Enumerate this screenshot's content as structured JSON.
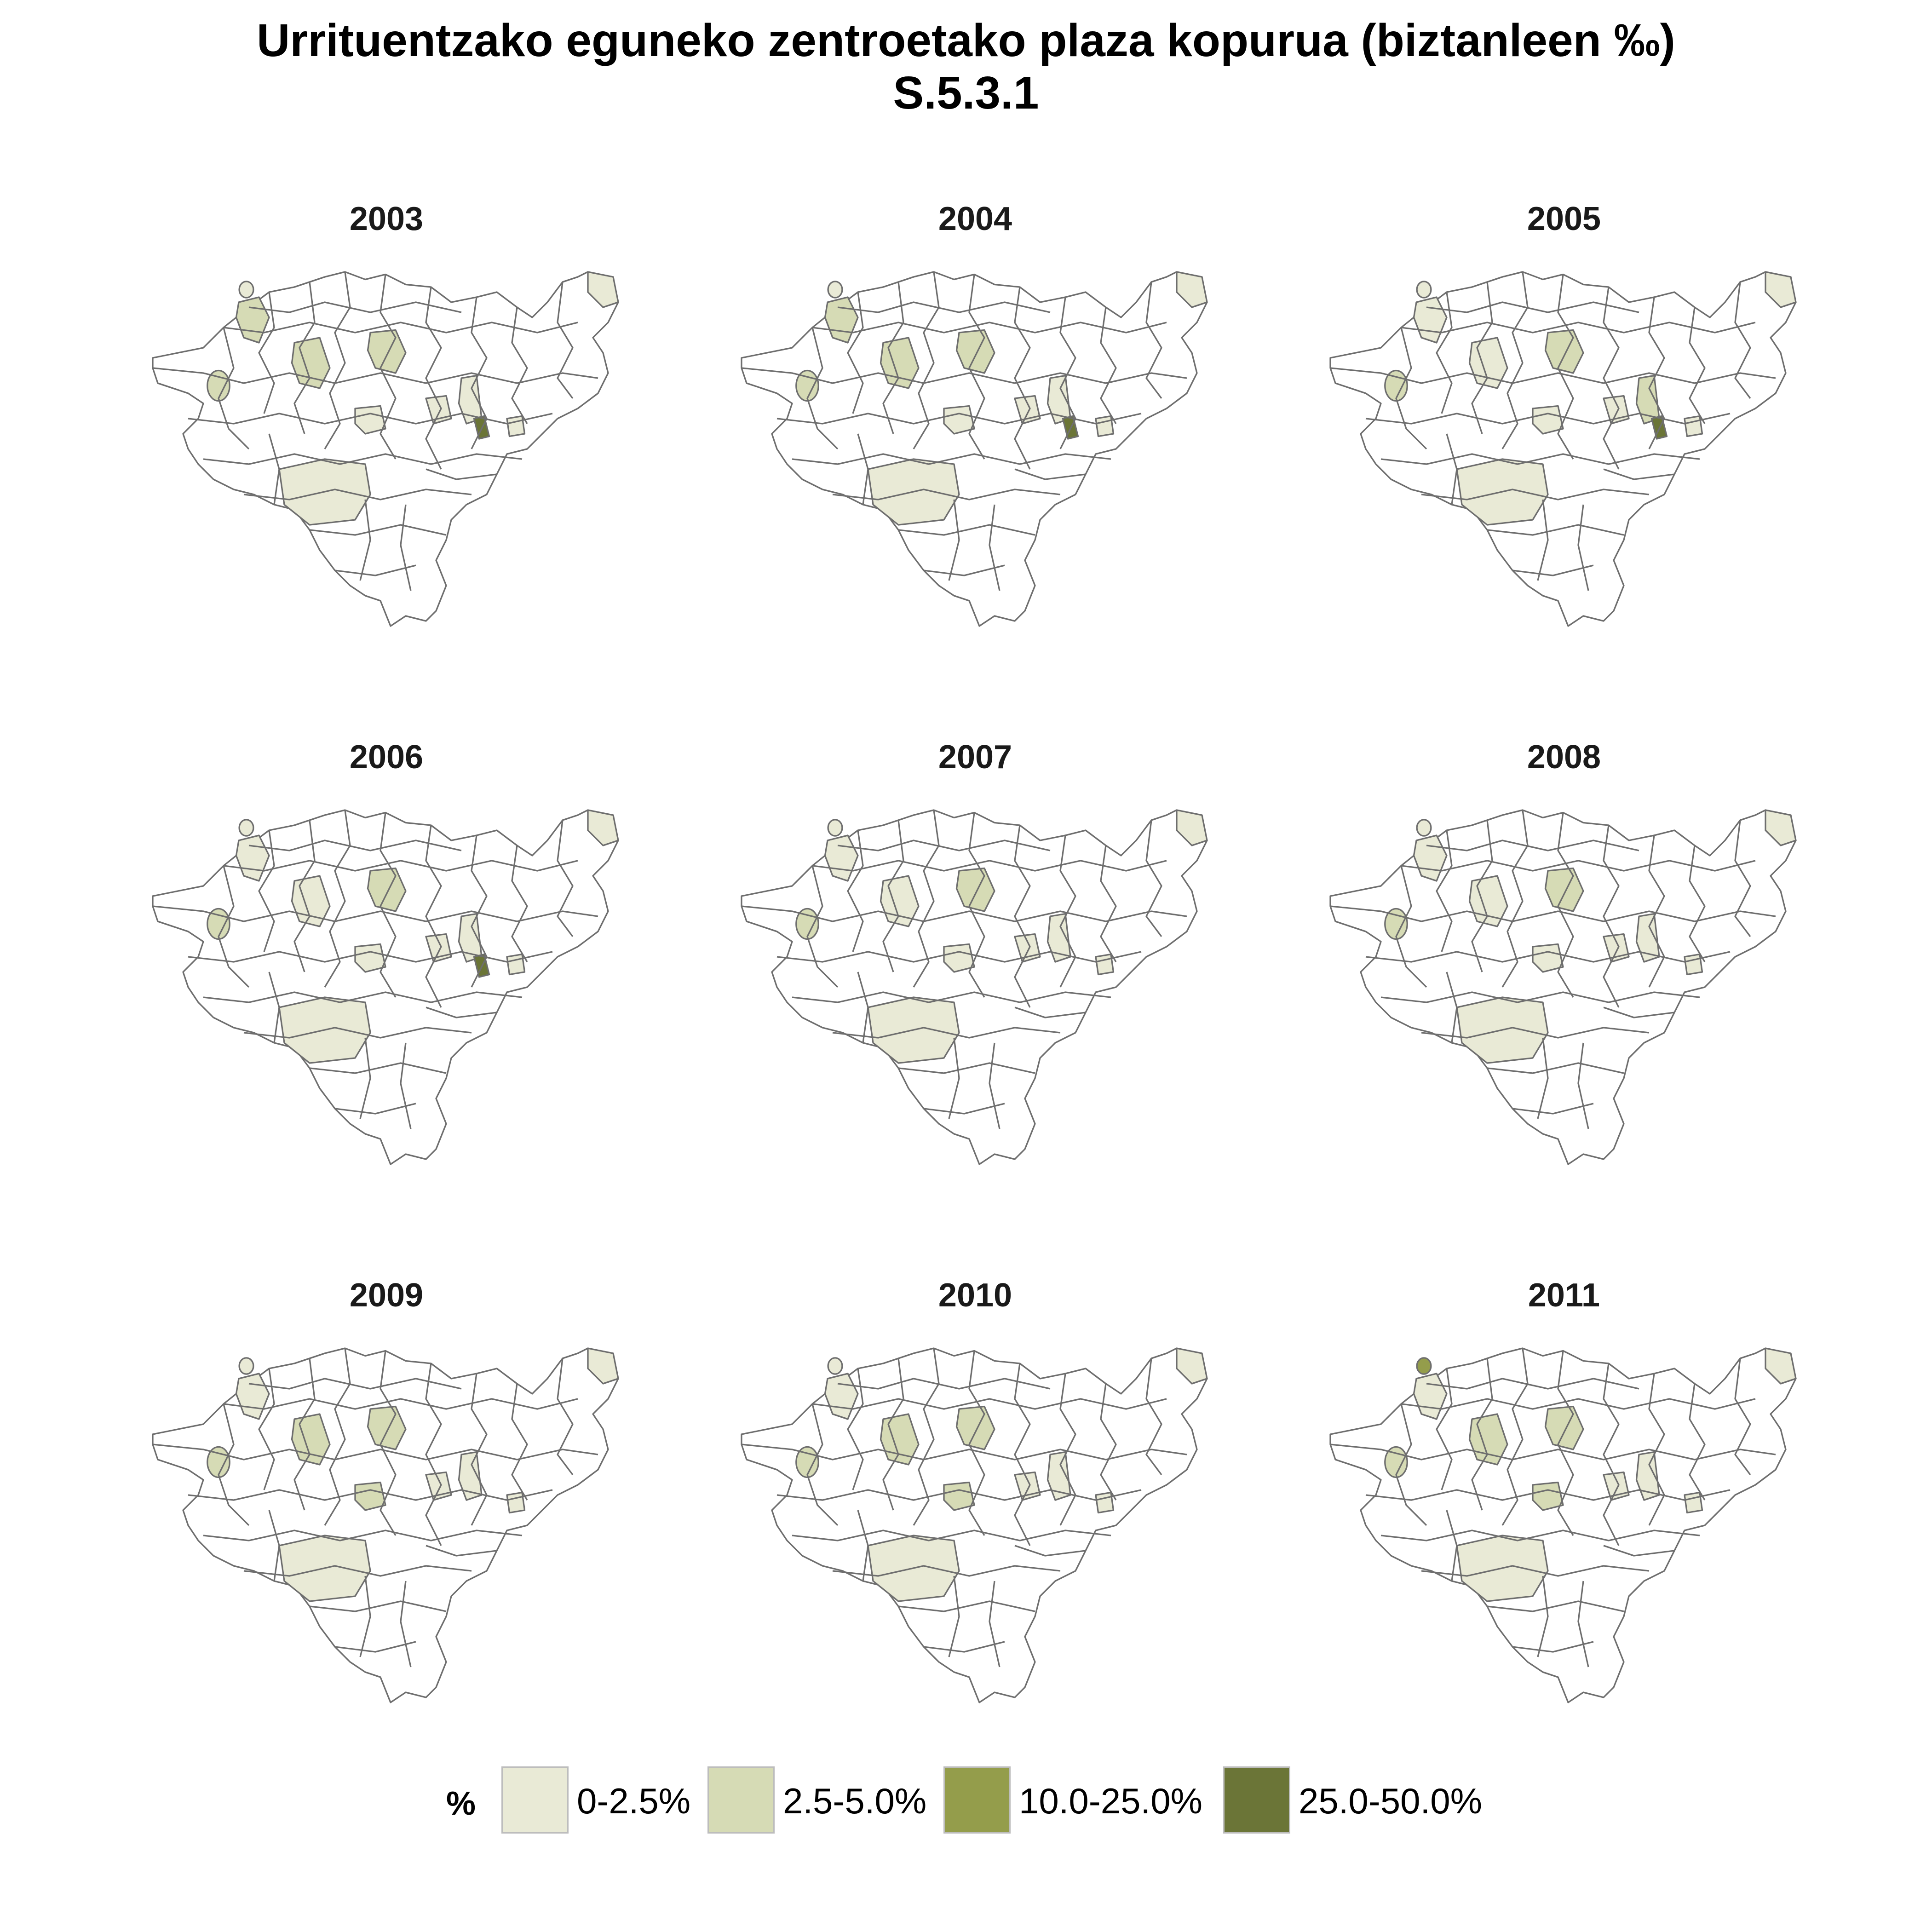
{
  "title": {
    "line1": "Urrituentzako eguneko zentroetako plaza kopurua (biztanleen ‰)",
    "line2": "S.5.3.1"
  },
  "legend": {
    "title": "%",
    "items": [
      {
        "label": "0-2.5%",
        "color": "#e9ead6"
      },
      {
        "label": "2.5-5.0%",
        "color": "#d6dbb5"
      },
      {
        "label": "10.0-25.0%",
        "color": "#949d4b"
      },
      {
        "label": "25.0-50.0%",
        "color": "#6b7537"
      }
    ]
  },
  "panels": [
    {
      "year": "2003",
      "classes": {
        "west": 1,
        "westCoast": 1,
        "centerA": 1,
        "centerB": 1,
        "centerC": 0,
        "centerD": 0,
        "east": 0,
        "eastSmall": 0,
        "south": 0,
        "northEast": 0,
        "darkCenter": 3,
        "smallNorth": 0
      }
    },
    {
      "year": "2004",
      "classes": {
        "west": 1,
        "westCoast": 1,
        "centerA": 1,
        "centerB": 1,
        "centerC": 0,
        "centerD": 0,
        "east": 0,
        "eastSmall": 0,
        "south": 0,
        "northEast": 0,
        "darkCenter": 3,
        "smallNorth": 0
      }
    },
    {
      "year": "2005",
      "classes": {
        "west": 1,
        "westCoast": 0,
        "centerA": 0,
        "centerB": 1,
        "centerC": 0,
        "centerD": 0,
        "east": 1,
        "eastSmall": 0,
        "south": 0,
        "northEast": 0,
        "darkCenter": 3,
        "smallNorth": 0
      }
    },
    {
      "year": "2006",
      "classes": {
        "west": 1,
        "westCoast": 0,
        "centerA": 0,
        "centerB": 1,
        "centerC": 0,
        "centerD": 0,
        "east": 0,
        "eastSmall": 0,
        "south": 0,
        "northEast": 0,
        "darkCenter": 3,
        "smallNorth": 0
      }
    },
    {
      "year": "2007",
      "classes": {
        "west": 1,
        "westCoast": 0,
        "centerA": 0,
        "centerB": 1,
        "centerC": 0,
        "centerD": 0,
        "east": 0,
        "eastSmall": 0,
        "south": 0,
        "northEast": 0,
        "darkCenter": -1,
        "smallNorth": 0
      }
    },
    {
      "year": "2008",
      "classes": {
        "west": 1,
        "westCoast": 0,
        "centerA": 0,
        "centerB": 1,
        "centerC": 0,
        "centerD": 0,
        "east": 0,
        "eastSmall": 0,
        "south": 0,
        "northEast": 0,
        "darkCenter": -1,
        "smallNorth": 0
      }
    },
    {
      "year": "2009",
      "classes": {
        "west": 1,
        "westCoast": 0,
        "centerA": 1,
        "centerB": 1,
        "centerC": 1,
        "centerD": 0,
        "east": 0,
        "eastSmall": 0,
        "south": 0,
        "northEast": 0,
        "darkCenter": -1,
        "smallNorth": 0
      }
    },
    {
      "year": "2010",
      "classes": {
        "west": 1,
        "westCoast": 0,
        "centerA": 1,
        "centerB": 1,
        "centerC": 1,
        "centerD": 0,
        "east": 0,
        "eastSmall": 0,
        "south": 0,
        "northEast": 0,
        "darkCenter": -1,
        "smallNorth": 0
      }
    },
    {
      "year": "2011",
      "classes": {
        "west": 1,
        "westCoast": 0,
        "centerA": 1,
        "centerB": 1,
        "centerC": 1,
        "centerD": 0,
        "east": 0,
        "eastSmall": 0,
        "south": 0,
        "northEast": 0,
        "darkCenter": -1,
        "smallNorth": 2
      }
    }
  ]
}
